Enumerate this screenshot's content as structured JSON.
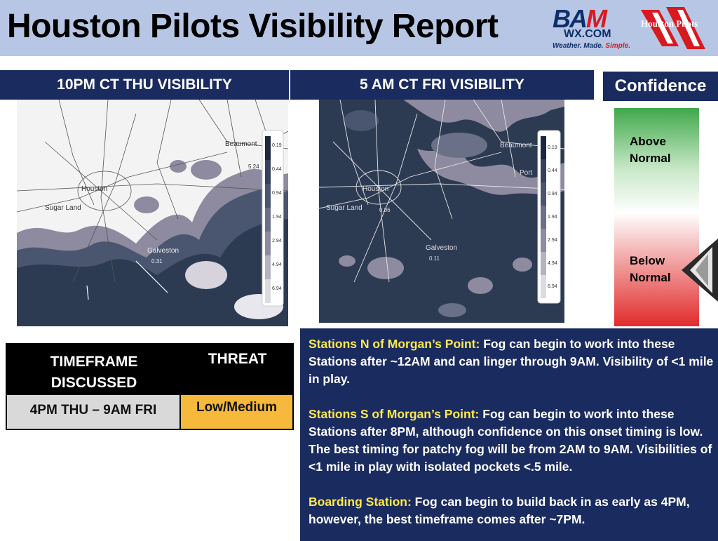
{
  "header": {
    "title": "Houston Pilots Visibility Report",
    "bam_logo": {
      "top": "BA",
      "m": "M",
      "domain": "WX.COM",
      "tagline": "Weather. Made.",
      "tagline_end": "Simple."
    },
    "pilots_logo": {
      "text": "Houston Pilots"
    }
  },
  "map_left": {
    "header": "10PM CT THU VISIBILITY",
    "labels": {
      "beaumont": "Beaumont",
      "houston": "Houston",
      "sugar_land": "Sugar Land",
      "galveston": "Galveston",
      "galveston_value": "0.31",
      "beaumont_value": "5.24"
    },
    "legend": [
      "0.19",
      "0.44",
      "0.94",
      "1.94",
      "2.94",
      "4.94",
      "6.94"
    ]
  },
  "map_right": {
    "header": "5 AM CT FRI VISIBILITY",
    "labels": {
      "beaumont": "Beaumont",
      "port": "Port",
      "houston": "Houston",
      "sugar_land": "Sugar Land",
      "sugar_land_value": "0.06",
      "galveston": "Galveston",
      "galveston_value": "0.11"
    },
    "legend": [
      "0.19",
      "0.44",
      "0.94",
      "1.94",
      "2.94",
      "4.94",
      "6.94"
    ]
  },
  "confidence": {
    "header": "Confidence",
    "above": [
      "Above",
      "Normal"
    ],
    "below": [
      "Below",
      "Normal"
    ],
    "indicator": "below"
  },
  "threat_table": {
    "col1_header": [
      "TIMEFRAME",
      "DISCUSSED"
    ],
    "col2_header": "THREAT",
    "timeframe": "4PM THU – 9AM FRI",
    "threat": "Low/Medium"
  },
  "notes": [
    {
      "label": "Stations N of Morgan’s Point:",
      "text": " Fog can begin to work into these Stations after ~12AM and can linger through 9AM. Visibility of <1 mile in play."
    },
    {
      "label": "Stations S of Morgan’s Point:",
      "text": " Fog can begin to work into these Stations after 8PM, although confidence on this onset timing is low. The best timing for patchy fog will be from 2AM to 9AM. Visibilities of <1 mile in play with isolated pockets <.5 mile."
    },
    {
      "label": "Boarding Station:",
      "text": " Fog can begin to build back in as early as 4PM, however, the best timeframe comes after ~7PM."
    }
  ],
  "colors": {
    "navy": "#1a2b5f",
    "header_bg": "#b7c6e4",
    "highlight": "#ffe94a",
    "threat": "#f6b93b",
    "fog_dark": "#2d3b52",
    "fog_light": "#8e8aa0"
  }
}
